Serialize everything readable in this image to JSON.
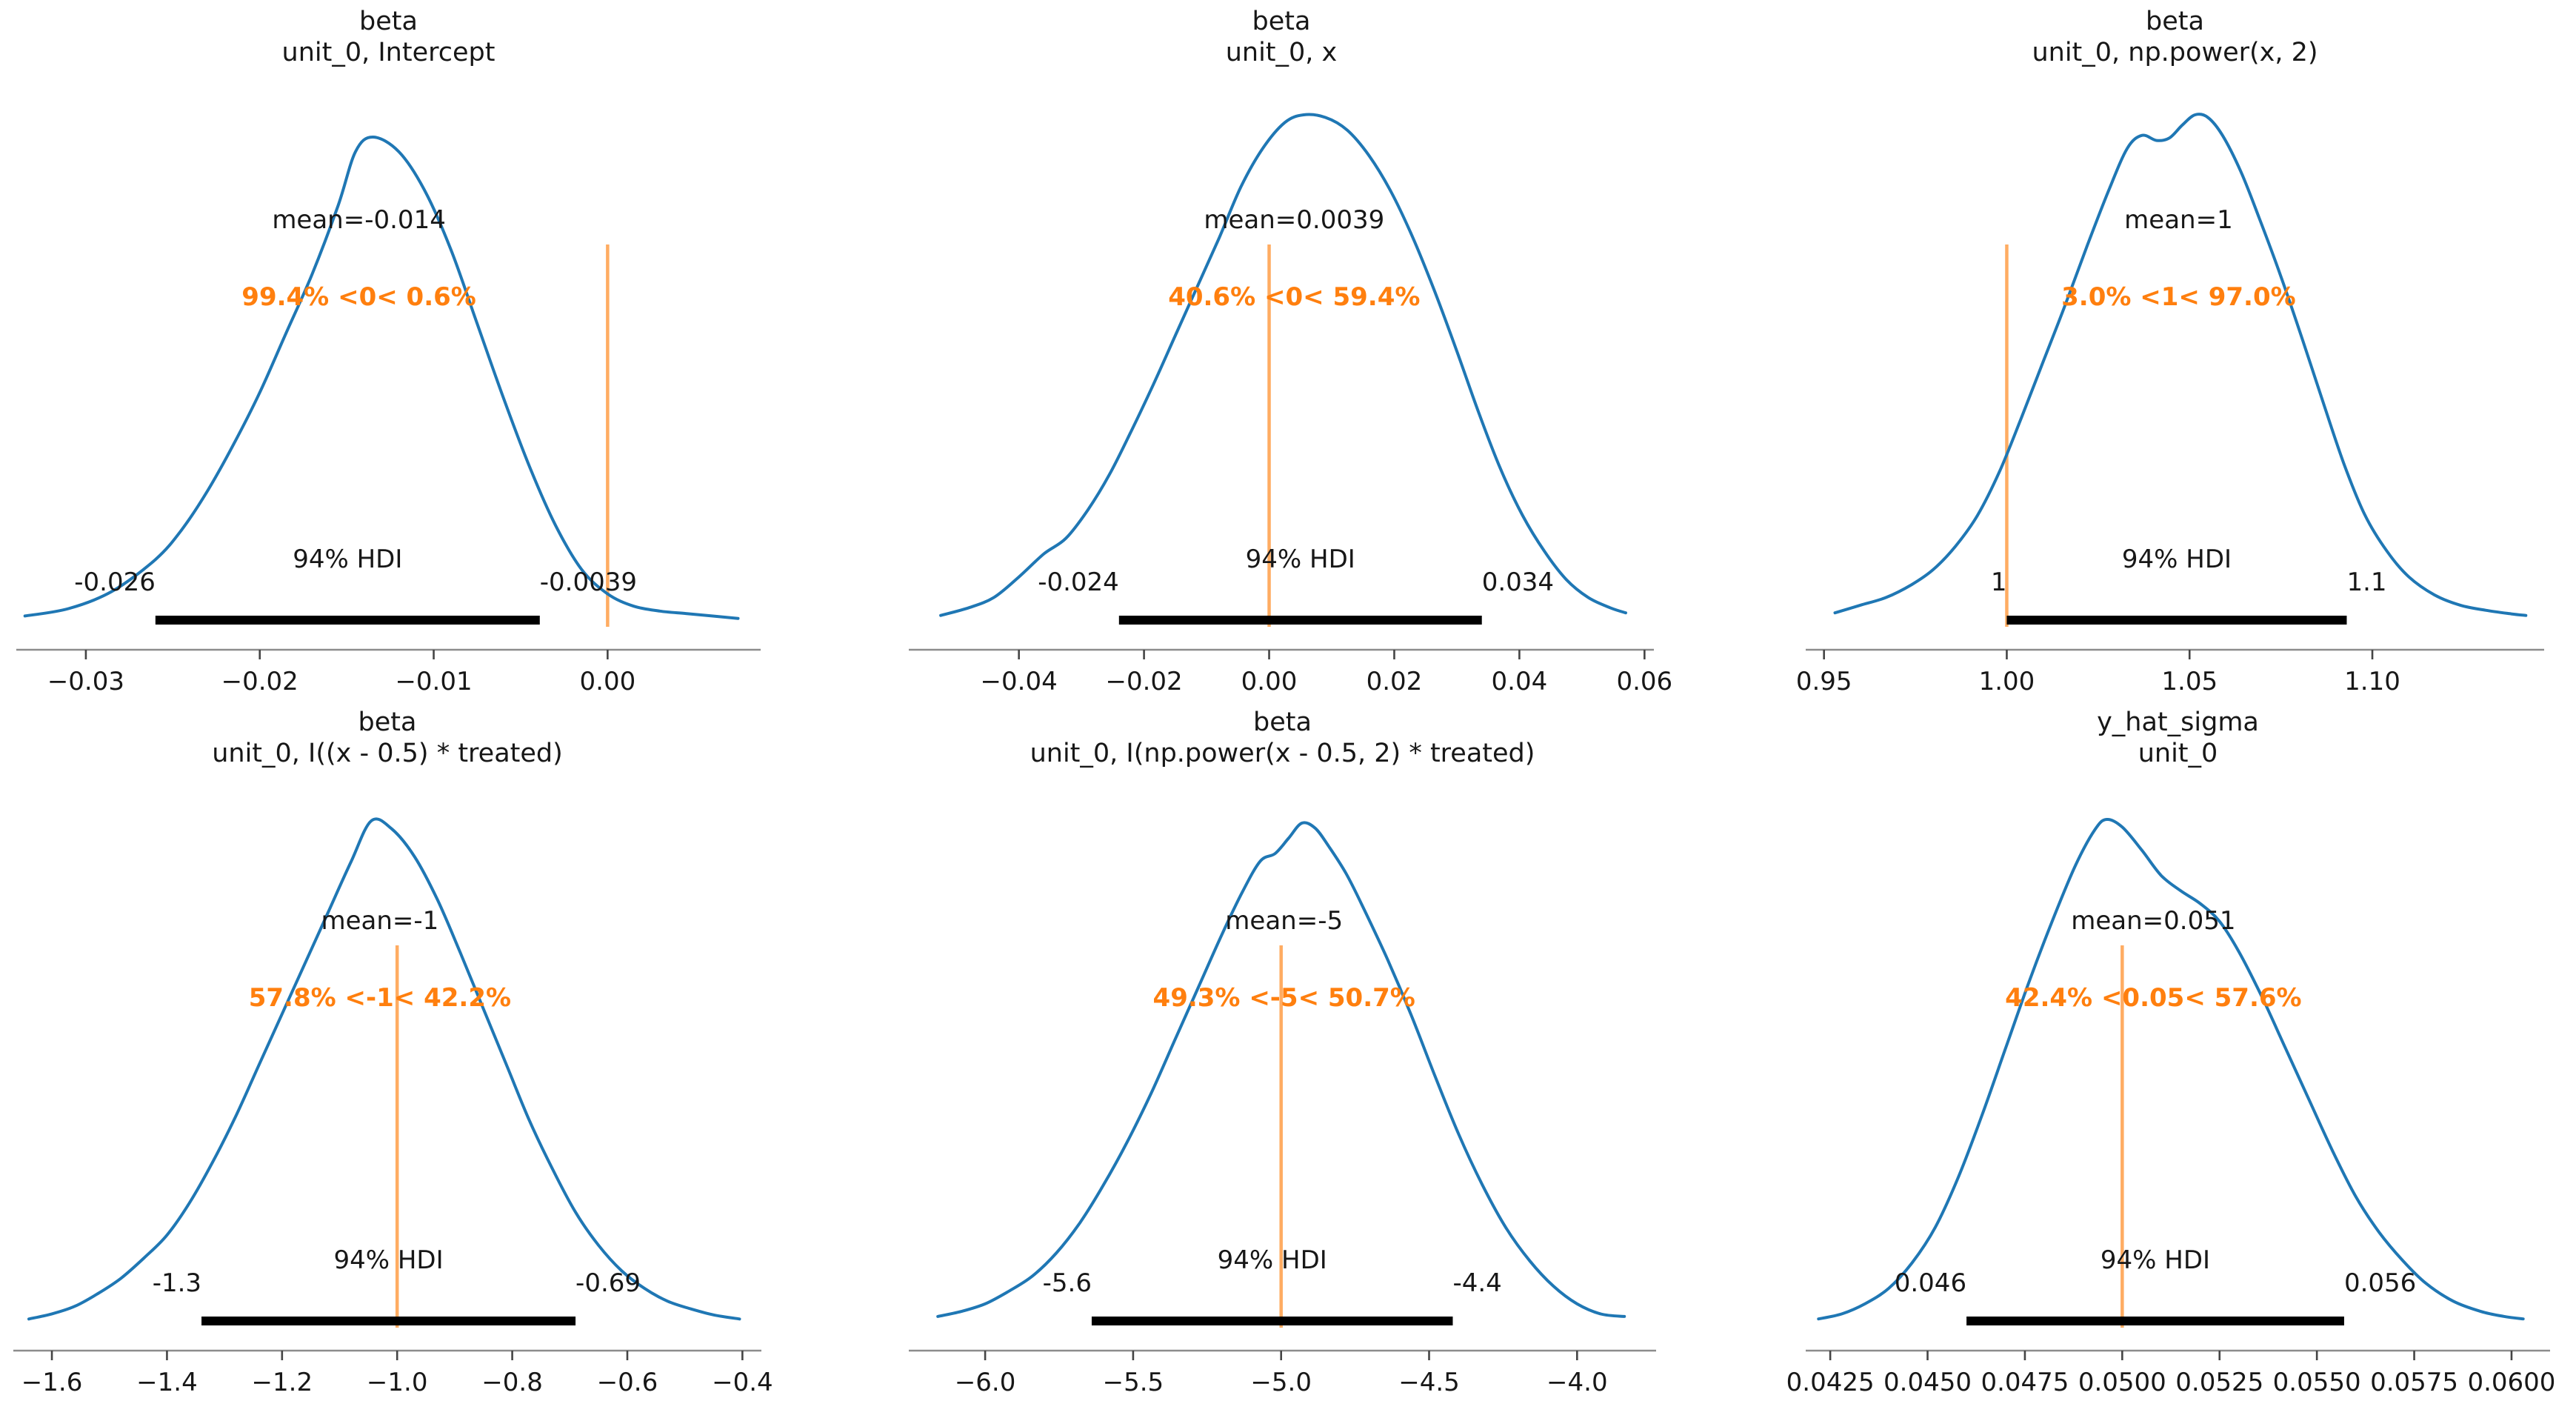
{
  "figure": {
    "background": "#ffffff"
  },
  "colors": {
    "kde_line": "#1f77b4",
    "ref_line": "#ff7f0e",
    "ref_line_opacity": 0.65,
    "ref_text": "#ff7f0e",
    "hdi_bar": "#000000",
    "text": "#171717",
    "spine": "#8c8c8c",
    "tick": "#454545"
  },
  "chart_data": [
    {
      "type": "kde",
      "title_line1": "beta",
      "title_line2": "unit_0, Intercept",
      "mean_label": "mean=-0.014",
      "mean_x_position": -0.0143,
      "ref_text": "99.4% <0< 0.6%",
      "ref_value": 0.0,
      "hdi_text": "94% HDI",
      "hdi_low": -0.026,
      "hdi_high": -0.0039,
      "hdi_low_label": "-0.026",
      "hdi_high_label": "-0.0039",
      "xlim": [
        -0.034,
        0.0088
      ],
      "xticks": [
        -0.03,
        -0.02,
        -0.01,
        0.0
      ],
      "xtick_labels": [
        "−0.03",
        "−0.02",
        "−0.01",
        "0.00"
      ],
      "curve": {
        "x": [
          -0.0335,
          -0.031,
          -0.0285,
          -0.026,
          -0.0245,
          -0.023,
          -0.0215,
          -0.02,
          -0.0185,
          -0.017,
          -0.0155,
          -0.0145,
          -0.0135,
          -0.012,
          -0.0105,
          -0.009,
          -0.0075,
          -0.006,
          -0.0045,
          -0.003,
          -0.0015,
          0.0,
          0.0015,
          0.003,
          0.0045,
          0.006,
          0.0075
        ],
        "y": [
          0.025,
          0.04,
          0.075,
          0.14,
          0.2,
          0.28,
          0.375,
          0.48,
          0.6,
          0.72,
          0.86,
          0.97,
          1.0,
          0.97,
          0.89,
          0.77,
          0.62,
          0.47,
          0.33,
          0.21,
          0.12,
          0.07,
          0.045,
          0.035,
          0.03,
          0.025,
          0.02
        ]
      }
    },
    {
      "type": "kde",
      "title_line1": "beta",
      "title_line2": "unit_0, x",
      "mean_label": "mean=0.0039",
      "mean_x_position": 0.004,
      "ref_text": "40.6% <0< 59.4%",
      "ref_value": 0.0,
      "hdi_text": "94% HDI",
      "hdi_low": -0.024,
      "hdi_high": 0.034,
      "hdi_low_label": "-0.024",
      "hdi_high_label": "0.034",
      "xlim": [
        -0.0576,
        0.0615
      ],
      "xticks": [
        -0.04,
        -0.02,
        0.0,
        0.02,
        0.04,
        0.06
      ],
      "xtick_labels": [
        "−0.04",
        "−0.02",
        "0.00",
        "0.02",
        "0.04",
        "0.06"
      ],
      "curve": {
        "x": [
          -0.0525,
          -0.048,
          -0.044,
          -0.04,
          -0.036,
          -0.0325,
          -0.029,
          -0.0255,
          -0.022,
          -0.0185,
          -0.015,
          -0.0115,
          -0.008,
          -0.0045,
          -0.001,
          0.0025,
          0.0055,
          0.009,
          0.0125,
          0.016,
          0.0195,
          0.023,
          0.0265,
          0.03,
          0.0335,
          0.037,
          0.0405,
          0.044,
          0.0475,
          0.051,
          0.0545,
          0.057
        ],
        "y": [
          0.025,
          0.04,
          0.06,
          0.1,
          0.145,
          0.175,
          0.23,
          0.3,
          0.385,
          0.475,
          0.57,
          0.665,
          0.76,
          0.86,
          0.935,
          0.985,
          1.0,
          0.995,
          0.97,
          0.92,
          0.85,
          0.76,
          0.655,
          0.54,
          0.42,
          0.31,
          0.22,
          0.15,
          0.095,
          0.06,
          0.04,
          0.03
        ]
      }
    },
    {
      "type": "kde",
      "title_line1": "beta",
      "title_line2": "unit_0, np.power(x, 2)",
      "mean_label": "mean=1",
      "mean_x_position": 1.047,
      "ref_text": "3.0% <1< 97.0%",
      "ref_value": 1.0,
      "hdi_text": "94% HDI",
      "hdi_low": 1.0,
      "hdi_high": 1.093,
      "hdi_low_label": "1",
      "hdi_high_label": "1.1",
      "xlim": [
        0.945,
        1.147
      ],
      "xticks": [
        0.95,
        1.0,
        1.05,
        1.1
      ],
      "xtick_labels": [
        "0.95",
        "1.00",
        "1.05",
        "1.10"
      ],
      "curve": {
        "x": [
          0.953,
          0.96,
          0.967,
          0.974,
          0.98,
          0.986,
          0.992,
          0.998,
          1.004,
          1.01,
          1.016,
          1.022,
          1.028,
          1.033,
          1.037,
          1.041,
          1.0445,
          1.048,
          1.0515,
          1.055,
          1.059,
          1.064,
          1.069,
          1.075,
          1.081,
          1.087,
          1.0925,
          1.098,
          1.104,
          1.11,
          1.117,
          1.124,
          1.131,
          1.138,
          1.142
        ],
        "y": [
          0.03,
          0.045,
          0.06,
          0.085,
          0.115,
          0.16,
          0.22,
          0.305,
          0.41,
          0.52,
          0.63,
          0.745,
          0.855,
          0.935,
          0.96,
          0.95,
          0.955,
          0.98,
          1.0,
          0.995,
          0.96,
          0.89,
          0.8,
          0.685,
          0.56,
          0.43,
          0.315,
          0.22,
          0.15,
          0.1,
          0.065,
          0.045,
          0.035,
          0.028,
          0.025
        ]
      }
    },
    {
      "type": "kde",
      "title_line1": "beta",
      "title_line2": "unit_0, I((x - 0.5) * treated)",
      "mean_label": "mean=-1",
      "mean_x_position": -1.03,
      "ref_text": "57.8% <-1< 42.2%",
      "ref_value": -1.0,
      "hdi_text": "94% HDI",
      "hdi_low": -1.34,
      "hdi_high": -0.69,
      "hdi_low_label": "-1.3",
      "hdi_high_label": "-0.69",
      "xlim": [
        -1.667,
        -0.367
      ],
      "xticks": [
        -1.6,
        -1.4,
        -1.2,
        -1.0,
        -0.8,
        -0.6,
        -0.4
      ],
      "xtick_labels": [
        "−1.6",
        "−1.4",
        "−1.2",
        "−1.0",
        "−0.8",
        "−0.6",
        "−0.4"
      ],
      "curve": {
        "x": [
          -1.64,
          -1.6,
          -1.56,
          -1.52,
          -1.48,
          -1.44,
          -1.4,
          -1.36,
          -1.32,
          -1.28,
          -1.24,
          -1.2,
          -1.16,
          -1.12,
          -1.08,
          -1.045,
          -1.01,
          -0.97,
          -0.93,
          -0.89,
          -0.85,
          -0.81,
          -0.77,
          -0.73,
          -0.69,
          -0.65,
          -0.61,
          -0.57,
          -0.53,
          -0.49,
          -0.45,
          -0.405
        ],
        "y": [
          0.02,
          0.03,
          0.045,
          0.07,
          0.1,
          0.14,
          0.185,
          0.25,
          0.33,
          0.42,
          0.52,
          0.62,
          0.72,
          0.82,
          0.92,
          1.0,
          0.985,
          0.93,
          0.845,
          0.74,
          0.63,
          0.52,
          0.41,
          0.315,
          0.23,
          0.165,
          0.115,
          0.08,
          0.055,
          0.04,
          0.028,
          0.02
        ]
      }
    },
    {
      "type": "kde",
      "title_line1": "beta",
      "title_line2": "unit_0, I(np.power(x - 0.5, 2) * treated)",
      "mean_label": "mean=-5",
      "mean_x_position": -4.99,
      "ref_text": "49.3% <-5< 50.7%",
      "ref_value": -5.0,
      "hdi_text": "94% HDI",
      "hdi_low": -5.64,
      "hdi_high": -4.42,
      "hdi_low_label": "-5.6",
      "hdi_high_label": "-4.4",
      "xlim": [
        -6.258,
        -3.733
      ],
      "xticks": [
        -6.0,
        -5.5,
        -5.0,
        -4.5,
        -4.0
      ],
      "xtick_labels": [
        "−6.0",
        "−5.5",
        "−5.0",
        "−4.5",
        "−4.0"
      ],
      "curve": {
        "x": [
          -6.16,
          -6.08,
          -6.0,
          -5.92,
          -5.84,
          -5.76,
          -5.68,
          -5.6,
          -5.52,
          -5.44,
          -5.36,
          -5.28,
          -5.2,
          -5.13,
          -5.07,
          -5.02,
          -4.975,
          -4.93,
          -4.885,
          -4.84,
          -4.78,
          -4.72,
          -4.64,
          -4.56,
          -4.48,
          -4.4,
          -4.32,
          -4.24,
          -4.16,
          -4.08,
          -4.0,
          -3.92,
          -3.84
        ],
        "y": [
          0.025,
          0.035,
          0.05,
          0.075,
          0.105,
          0.15,
          0.21,
          0.285,
          0.37,
          0.465,
          0.57,
          0.675,
          0.78,
          0.865,
          0.925,
          0.94,
          0.97,
          1.0,
          0.99,
          0.955,
          0.9,
          0.83,
          0.73,
          0.62,
          0.5,
          0.385,
          0.285,
          0.2,
          0.135,
          0.085,
          0.05,
          0.03,
          0.025
        ]
      }
    },
    {
      "type": "kde",
      "title_line1": "y_hat_sigma",
      "title_line2": "unit_0",
      "mean_label": "mean=0.051",
      "mean_x_position": 0.0508,
      "ref_text": "42.4% <0.05< 57.6%",
      "ref_value": 0.05,
      "hdi_text": "94% HDI",
      "hdi_low": 0.046,
      "hdi_high": 0.0557,
      "hdi_low_label": "0.046",
      "hdi_high_label": "0.056",
      "xlim": [
        0.04187,
        0.06099
      ],
      "xticks": [
        0.0425,
        0.045,
        0.0475,
        0.05,
        0.0525,
        0.055,
        0.0575,
        0.06
      ],
      "xtick_labels": [
        "0.0425",
        "0.0450",
        "0.0475",
        "0.0500",
        "0.0525",
        "0.0550",
        "0.0575",
        "0.0600"
      ],
      "curve": {
        "x": [
          0.0422,
          0.0428,
          0.0434,
          0.044,
          0.0446,
          0.0452,
          0.0458,
          0.0464,
          0.047,
          0.0476,
          0.0482,
          0.0488,
          0.0493,
          0.0496,
          0.05,
          0.0505,
          0.051,
          0.0515,
          0.052,
          0.0525,
          0.053,
          0.0536,
          0.0542,
          0.0548,
          0.0554,
          0.056,
          0.0566,
          0.0572,
          0.0578,
          0.0585,
          0.0592,
          0.0598,
          0.0603
        ],
        "y": [
          0.02,
          0.03,
          0.05,
          0.08,
          0.13,
          0.2,
          0.3,
          0.42,
          0.55,
          0.68,
          0.8,
          0.91,
          0.98,
          1.0,
          0.985,
          0.94,
          0.89,
          0.86,
          0.835,
          0.8,
          0.74,
          0.65,
          0.55,
          0.45,
          0.35,
          0.26,
          0.19,
          0.135,
          0.09,
          0.055,
          0.035,
          0.025,
          0.02
        ]
      }
    }
  ]
}
